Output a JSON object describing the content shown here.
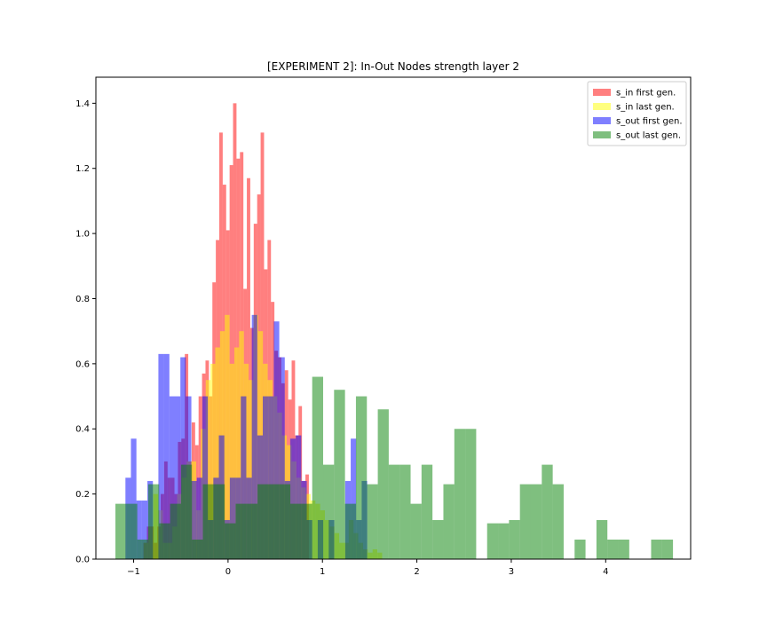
{
  "chart_data": {
    "type": "bar",
    "title": "[EXPERIMENT 2]: In-Out Nodes strength layer 2",
    "xlabel": "",
    "ylabel": "",
    "xlim": [
      -1.4,
      4.9
    ],
    "ylim": [
      0,
      1.48
    ],
    "xticks": [
      -1,
      0,
      1,
      2,
      3,
      4
    ],
    "xtick_labels": [
      "−1",
      "0",
      "1",
      "2",
      "3",
      "4"
    ],
    "yticks": [
      0.0,
      0.2,
      0.4,
      0.6,
      0.8,
      1.0,
      1.2,
      1.4
    ],
    "ytick_labels": [
      "0.0",
      "0.2",
      "0.4",
      "0.6",
      "0.8",
      "1.0",
      "1.2",
      "1.4"
    ],
    "grid": false,
    "legend_position": "top-right",
    "series": [
      {
        "name": "s_in first gen.",
        "color": "#ff0000",
        "opacity": 0.5,
        "bin_width": 0.0365,
        "bin_start": -0.896,
        "counts": [
          0.05,
          0.1,
          0.1,
          0.05,
          0.1,
          0.2,
          0.3,
          0.25,
          0.25,
          0.2,
          0.36,
          0.37,
          0.63,
          0.3,
          0.42,
          0.35,
          0.5,
          0.57,
          0.61,
          0.5,
          0.85,
          0.98,
          1.31,
          1.15,
          1.01,
          1.21,
          1.4,
          1.23,
          1.25,
          0.83,
          1.17,
          0.71,
          1.03,
          1.12,
          1.31,
          0.89,
          0.98,
          0.79,
          0.64,
          0.62,
          0.54,
          0.58,
          0.49,
          0.61,
          0.38,
          0.47,
          0.24,
          0.26
        ]
      },
      {
        "name": "s_in last gen.",
        "color": "#ffff00",
        "opacity": 0.5,
        "bin_width": 0.0505,
        "bin_start": -0.893,
        "counts": [
          0.05,
          0.1,
          0.2,
          0.15,
          0.05,
          0.05,
          0.1,
          0.2,
          0.25,
          0.3,
          0.3,
          0.15,
          0.4,
          0.55,
          0.6,
          0.65,
          0.7,
          0.75,
          0.6,
          0.65,
          0.7,
          0.6,
          0.55,
          0.75,
          0.7,
          0.6,
          0.55,
          0.5,
          0.45,
          0.38,
          0.35,
          0.3,
          0.25,
          0.22,
          0.2,
          0.18,
          0.17,
          0.15,
          0.12,
          0.1,
          0.08,
          0.05,
          0.05,
          0.12,
          0.08,
          0.05,
          0.03,
          0.02,
          0.03,
          0.02
        ]
      },
      {
        "name": "s_out first gen.",
        "color": "#0000ff",
        "opacity": 0.5,
        "bin_width": 0.0582,
        "bin_start": -1.087,
        "counts": [
          0.25,
          0.37,
          0.18,
          0.18,
          0.24,
          0.0,
          0.63,
          0.63,
          0.5,
          0.5,
          0.62,
          0.5,
          0.24,
          0.25,
          0.5,
          0.12,
          0.25,
          0.38,
          0.12,
          0.25,
          0.25,
          0.5,
          0.25,
          0.75,
          0.38,
          0.5,
          0.5,
          0.73,
          0.62,
          0.24,
          0.37,
          0.38,
          0.24,
          0.12,
          0.0,
          0.12,
          0.0,
          0.12,
          0.0,
          0.0,
          0.24,
          0.37,
          0.12,
          0.24
        ]
      },
      {
        "name": "s_out last gen.",
        "color": "#008000",
        "opacity": 0.5,
        "bin_width": 0.1158,
        "bin_start": -1.193,
        "counts": [
          0.17,
          0.17,
          0.06,
          0.23,
          0.11,
          0.17,
          0.29,
          0.06,
          0.23,
          0.23,
          0.11,
          0.17,
          0.17,
          0.23,
          0.23,
          0.23,
          0.17,
          0.17,
          0.56,
          0.29,
          0.52,
          0.17,
          0.5,
          0.23,
          0.46,
          0.29,
          0.29,
          0.17,
          0.29,
          0.12,
          0.23,
          0.4,
          0.4,
          0.0,
          0.11,
          0.11,
          0.12,
          0.23,
          0.23,
          0.29,
          0.23,
          0.0,
          0.06,
          0.0,
          0.12,
          0.06,
          0.06,
          0.0,
          0.0,
          0.06,
          0.06,
          0.0,
          0.0,
          0.0,
          0.0,
          0.0,
          0.0,
          0.0,
          0.0,
          0.0
        ]
      }
    ]
  }
}
